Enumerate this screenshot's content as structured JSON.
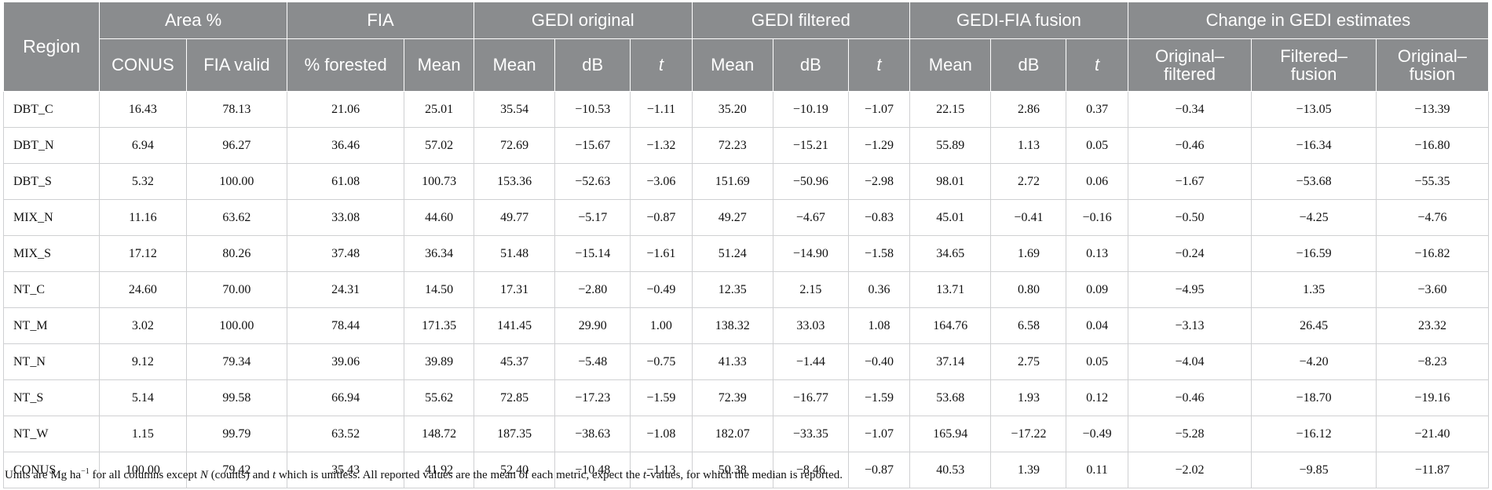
{
  "table": {
    "header_groups": {
      "region": "Region",
      "area": "Area %",
      "fia": "FIA",
      "gedi_original": "GEDI original",
      "gedi_filtered": "GEDI filtered",
      "fusion": "GEDI-FIA fusion",
      "change": "Change in GEDI estimates"
    },
    "subheaders": {
      "conus": "CONUS",
      "fia_valid": "FIA valid",
      "pct_forested": "% forested",
      "mean": "Mean",
      "db": "dB",
      "t": "t",
      "orig_filt_1": "Original–",
      "orig_filt_2": "filtered",
      "filt_fus_1": "Filtered–",
      "filt_fus_2": "fusion",
      "orig_fus_1": "Original–",
      "orig_fus_2": "fusion"
    },
    "rows": [
      [
        "DBT_C",
        "16.43",
        "78.13",
        "21.06",
        "25.01",
        "35.54",
        "−10.53",
        "−1.11",
        "35.20",
        "−10.19",
        "−1.07",
        "22.15",
        "2.86",
        "0.37",
        "−0.34",
        "−13.05",
        "−13.39"
      ],
      [
        "DBT_N",
        "6.94",
        "96.27",
        "36.46",
        "57.02",
        "72.69",
        "−15.67",
        "−1.32",
        "72.23",
        "−15.21",
        "−1.29",
        "55.89",
        "1.13",
        "0.05",
        "−0.46",
        "−16.34",
        "−16.80"
      ],
      [
        "DBT_S",
        "5.32",
        "100.00",
        "61.08",
        "100.73",
        "153.36",
        "−52.63",
        "−3.06",
        "151.69",
        "−50.96",
        "−2.98",
        "98.01",
        "2.72",
        "0.06",
        "−1.67",
        "−53.68",
        "−55.35"
      ],
      [
        "MIX_N",
        "11.16",
        "63.62",
        "33.08",
        "44.60",
        "49.77",
        "−5.17",
        "−0.87",
        "49.27",
        "−4.67",
        "−0.83",
        "45.01",
        "−0.41",
        "−0.16",
        "−0.50",
        "−4.25",
        "−4.76"
      ],
      [
        "MIX_S",
        "17.12",
        "80.26",
        "37.48",
        "36.34",
        "51.48",
        "−15.14",
        "−1.61",
        "51.24",
        "−14.90",
        "−1.58",
        "34.65",
        "1.69",
        "0.13",
        "−0.24",
        "−16.59",
        "−16.82"
      ],
      [
        "NT_C",
        "24.60",
        "70.00",
        "24.31",
        "14.50",
        "17.31",
        "−2.80",
        "−0.49",
        "12.35",
        "2.15",
        "0.36",
        "13.71",
        "0.80",
        "0.09",
        "−4.95",
        "1.35",
        "−3.60"
      ],
      [
        "NT_M",
        "3.02",
        "100.00",
        "78.44",
        "171.35",
        "141.45",
        "29.90",
        "1.00",
        "138.32",
        "33.03",
        "1.08",
        "164.76",
        "6.58",
        "0.04",
        "−3.13",
        "26.45",
        "23.32"
      ],
      [
        "NT_N",
        "9.12",
        "79.34",
        "39.06",
        "39.89",
        "45.37",
        "−5.48",
        "−0.75",
        "41.33",
        "−1.44",
        "−0.40",
        "37.14",
        "2.75",
        "0.05",
        "−4.04",
        "−4.20",
        "−8.23"
      ],
      [
        "NT_S",
        "5.14",
        "99.58",
        "66.94",
        "55.62",
        "72.85",
        "−17.23",
        "−1.59",
        "72.39",
        "−16.77",
        "−1.59",
        "53.68",
        "1.93",
        "0.12",
        "−0.46",
        "−18.70",
        "−19.16"
      ],
      [
        "NT_W",
        "1.15",
        "99.79",
        "63.52",
        "148.72",
        "187.35",
        "−38.63",
        "−1.08",
        "182.07",
        "−33.35",
        "−1.07",
        "165.94",
        "−17.22",
        "−0.49",
        "−5.28",
        "−16.12",
        "−21.40"
      ],
      [
        "CONUS",
        "100.00",
        "79.42",
        "35.43",
        "41.92",
        "52.40",
        "−10.48",
        "−1.13",
        "50.38",
        "−8.46",
        "−0.87",
        "40.53",
        "1.39",
        "0.11",
        "−2.02",
        "−9.85",
        "−11.87"
      ]
    ]
  },
  "footnote": {
    "part1": "Units are Mg ha",
    "exp": "−1",
    "part2": " for all columns except ",
    "n": "N",
    "part3": " (counts) and ",
    "t": "t",
    "part4": " which is unitless. All reported values are the mean of each metric, expect the ",
    "t2": "t",
    "part5": "-values, for which the median is reported."
  },
  "colors": {
    "header_bg": "#8a8c8e",
    "header_text": "#ffffff",
    "grid_line": "#cfd0d2"
  }
}
